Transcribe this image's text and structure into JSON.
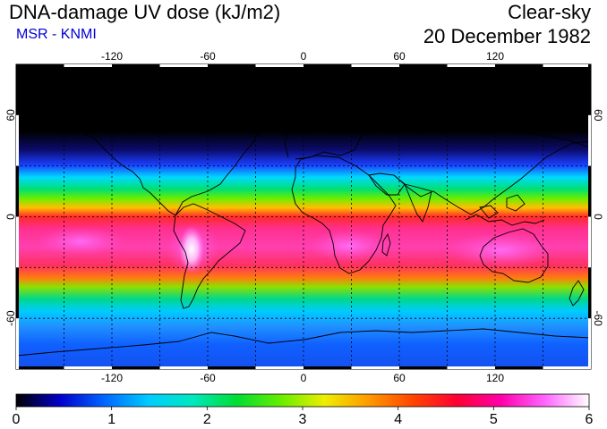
{
  "header": {
    "title": "DNA-damage UV dose (kJ/m2)",
    "subtitle": "MSR - KNMI",
    "sky": "Clear-sky",
    "date": "20 December 1982"
  },
  "map": {
    "lon_ticks": [
      "-120",
      "-60",
      "0",
      "60",
      "120"
    ],
    "lat_ticks": [
      "60",
      "0",
      "-60"
    ],
    "lon_range": [
      -180,
      180
    ],
    "lat_range": [
      -90,
      90
    ],
    "lon_step_deg": 30,
    "lat_step_deg": 30
  },
  "colorbar": {
    "labels": [
      "0",
      "1",
      "2",
      "3",
      "4",
      "5",
      "6"
    ],
    "min": 0,
    "max": 6,
    "colors": [
      "#000000",
      "#0000cc",
      "#0066ff",
      "#00ccff",
      "#00e8c0",
      "#00dd33",
      "#66ee00",
      "#eeee00",
      "#ff9900",
      "#ff4400",
      "#ff0033",
      "#ff00aa",
      "#ff66ff",
      "#ffffff"
    ]
  },
  "colors": {
    "grid": "#000000",
    "subtitle": "#0000d8"
  }
}
